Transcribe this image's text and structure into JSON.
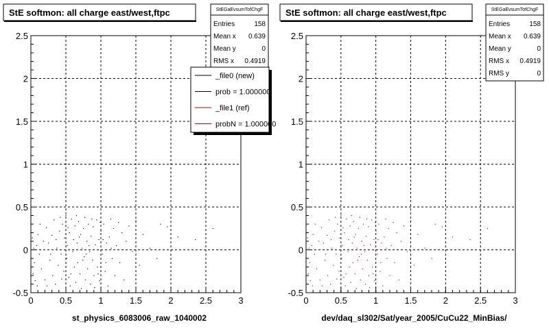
{
  "colors": {
    "ref_series": "#cc0000",
    "new_series": "#000000",
    "legend_red": "#cc0000"
  },
  "bottom_left_text": "",
  "chart_data": [
    {
      "type": "scatter",
      "title": "StE softmon: all charge east/west,ftpc",
      "xlabel": "st_physics_6083006_raw_1040002",
      "ylabel": "",
      "xlim": [
        0,
        3
      ],
      "ylim": [
        -0.5,
        2.5
      ],
      "grid": true,
      "x_ticks": [
        "0",
        "0.5",
        "1",
        "1.5",
        "2",
        "2.5",
        "3"
      ],
      "y_ticks": [
        "-0.5",
        "0",
        "0.5",
        "1",
        "1.5",
        "2",
        "2.5"
      ],
      "stats": {
        "name": "StEGaEvsumTofChgF",
        "rows": [
          {
            "label": "Entries",
            "value": "158"
          },
          {
            "label": "Mean x",
            "value": "0.639"
          },
          {
            "label": "Mean y",
            "value": "0"
          },
          {
            "label": "RMS x",
            "value": "0.4919"
          }
        ]
      },
      "legend": {
        "placement": "top-right",
        "entries": [
          {
            "label": "_file0 (new)",
            "color": "#000000"
          },
          {
            "label": "prob = 1.000000",
            "color": "#000000"
          },
          {
            "label": "_file1 (ref)",
            "color": "#cc0000"
          },
          {
            "label": "probN = 1.000000",
            "color": "#cc0000"
          }
        ]
      },
      "point_color": "#000000",
      "points": [
        [
          0.02,
          0.14
        ],
        [
          0.04,
          0.02
        ],
        [
          0.05,
          -0.15
        ],
        [
          0.03,
          -0.28
        ],
        [
          0.06,
          -0.36
        ],
        [
          0.08,
          0.05
        ],
        [
          0.09,
          -0.42
        ],
        [
          0.1,
          0.18
        ],
        [
          0.12,
          -0.05
        ],
        [
          0.15,
          -0.22
        ],
        [
          0.18,
          0.1
        ],
        [
          0.2,
          -0.35
        ],
        [
          0.22,
          0.26
        ],
        [
          0.25,
          0.08
        ],
        [
          0.27,
          -0.12
        ],
        [
          0.3,
          0.17
        ],
        [
          0.31,
          -0.3
        ],
        [
          0.33,
          0.35
        ],
        [
          0.35,
          -0.4
        ],
        [
          0.37,
          0.02
        ],
        [
          0.39,
          -0.18
        ],
        [
          0.41,
          0.22
        ],
        [
          0.43,
          -0.05
        ],
        [
          0.45,
          0.3
        ],
        [
          0.47,
          -0.25
        ],
        [
          0.48,
          0.14
        ],
        [
          0.5,
          0.4
        ],
        [
          0.51,
          -0.1
        ],
        [
          0.52,
          0.05
        ],
        [
          0.54,
          -0.32
        ],
        [
          0.55,
          0.2
        ],
        [
          0.56,
          -0.42
        ],
        [
          0.58,
          0.36
        ],
        [
          0.6,
          -0.02
        ],
        [
          0.61,
          0.12
        ],
        [
          0.62,
          -0.2
        ],
        [
          0.63,
          0.28
        ],
        [
          0.64,
          -0.38
        ],
        [
          0.66,
          0.08
        ],
        [
          0.67,
          -0.15
        ],
        [
          0.68,
          0.33
        ],
        [
          0.7,
          -0.28
        ],
        [
          0.71,
          0.18
        ],
        [
          0.72,
          -0.45
        ],
        [
          0.73,
          0.02
        ],
        [
          0.75,
          0.25
        ],
        [
          0.76,
          -0.08
        ],
        [
          0.77,
          0.38
        ],
        [
          0.78,
          -0.35
        ],
        [
          0.8,
          0.1
        ],
        [
          0.81,
          -0.22
        ],
        [
          0.82,
          0.3
        ],
        [
          0.84,
          -0.02
        ],
        [
          0.85,
          -0.4
        ],
        [
          0.86,
          0.16
        ],
        [
          0.88,
          -0.12
        ],
        [
          0.89,
          0.27
        ],
        [
          0.9,
          -0.3
        ],
        [
          0.92,
          0.06
        ],
        [
          0.94,
          0.35
        ],
        [
          0.95,
          -0.2
        ],
        [
          0.97,
          0.12
        ],
        [
          0.98,
          -0.36
        ],
        [
          1.0,
          0.22
        ],
        [
          1.02,
          -0.05
        ],
        [
          1.04,
          0.3
        ],
        [
          1.06,
          -0.25
        ],
        [
          1.08,
          0.08
        ],
        [
          1.1,
          -0.42
        ],
        [
          1.12,
          0.15
        ],
        [
          1.14,
          0.36
        ],
        [
          1.16,
          -0.1
        ],
        [
          1.18,
          0.25
        ],
        [
          1.2,
          -0.3
        ],
        [
          1.22,
          0.05
        ],
        [
          1.25,
          0.32
        ],
        [
          1.27,
          -0.15
        ],
        [
          1.3,
          0.2
        ],
        [
          1.33,
          -0.35
        ],
        [
          1.36,
          0.1
        ],
        [
          1.4,
          0.28
        ],
        [
          1.45,
          -0.02
        ],
        [
          1.5,
          0.34
        ],
        [
          1.55,
          -0.18
        ],
        [
          1.6,
          0.18
        ],
        [
          1.7,
          0.02
        ],
        [
          1.8,
          -0.1
        ],
        [
          1.85,
          0.3
        ],
        [
          1.95,
          0.27
        ],
        [
          2.1,
          0.15
        ],
        [
          2.35,
          0.12
        ],
        [
          2.6,
          0.25
        ],
        [
          0.13,
          0.3
        ],
        [
          0.23,
          -0.42
        ],
        [
          0.36,
          0.12
        ],
        [
          0.44,
          -0.34
        ],
        [
          0.53,
          0.26
        ],
        [
          0.65,
          0.4
        ],
        [
          0.74,
          -0.12
        ],
        [
          0.83,
          0.05
        ],
        [
          0.91,
          -0.44
        ],
        [
          0.99,
          0.32
        ],
        [
          1.07,
          -0.15
        ],
        [
          1.15,
          0.02
        ],
        [
          0.28,
          -0.05
        ],
        [
          0.42,
          0.38
        ],
        [
          0.57,
          -0.28
        ],
        [
          0.69,
          0.15
        ],
        [
          0.79,
          -0.05
        ],
        [
          0.87,
          0.36
        ],
        [
          0.96,
          -0.28
        ],
        [
          1.03,
          0.12
        ]
      ]
    },
    {
      "type": "scatter",
      "title": "StE softmon: all charge east/west,ftpc",
      "xlabel": "dev/daq_sl302/Sat/year_2005/CuCu22_MinBias/",
      "ylabel": "",
      "xlim": [
        0,
        3
      ],
      "ylim": [
        -0.5,
        2.5
      ],
      "grid": true,
      "x_ticks": [
        "0",
        "0.5",
        "1",
        "1.5",
        "2",
        "2.5",
        "3"
      ],
      "y_ticks": [
        "-0.5",
        "0",
        "0.5",
        "1",
        "1.5",
        "2",
        "2.5"
      ],
      "stats": {
        "name": "StEGaEvsumTofChgF",
        "rows": [
          {
            "label": "Entries",
            "value": "158"
          },
          {
            "label": "Mean x",
            "value": "0.639"
          },
          {
            "label": "Mean y",
            "value": "0"
          },
          {
            "label": "RMS x",
            "value": "0.4919"
          },
          {
            "label": "RMS y",
            "value": "0"
          }
        ]
      },
      "point_color": "#cc0000",
      "points": [
        [
          0.02,
          0.14
        ],
        [
          0.04,
          0.02
        ],
        [
          0.05,
          -0.15
        ],
        [
          0.03,
          -0.28
        ],
        [
          0.06,
          -0.36
        ],
        [
          0.08,
          0.05
        ],
        [
          0.09,
          -0.42
        ],
        [
          0.1,
          0.18
        ],
        [
          0.12,
          -0.05
        ],
        [
          0.15,
          -0.22
        ],
        [
          0.18,
          0.1
        ],
        [
          0.2,
          -0.35
        ],
        [
          0.22,
          0.26
        ],
        [
          0.25,
          0.08
        ],
        [
          0.27,
          -0.12
        ],
        [
          0.3,
          0.17
        ],
        [
          0.31,
          -0.3
        ],
        [
          0.33,
          0.35
        ],
        [
          0.35,
          -0.4
        ],
        [
          0.37,
          0.02
        ],
        [
          0.39,
          -0.18
        ],
        [
          0.41,
          0.22
        ],
        [
          0.43,
          -0.05
        ],
        [
          0.45,
          0.3
        ],
        [
          0.47,
          -0.25
        ],
        [
          0.48,
          0.14
        ],
        [
          0.5,
          0.4
        ],
        [
          0.51,
          -0.1
        ],
        [
          0.52,
          0.05
        ],
        [
          0.54,
          -0.32
        ],
        [
          0.55,
          0.2
        ],
        [
          0.56,
          -0.42
        ],
        [
          0.58,
          0.36
        ],
        [
          0.6,
          -0.02
        ],
        [
          0.61,
          0.12
        ],
        [
          0.62,
          -0.2
        ],
        [
          0.63,
          0.28
        ],
        [
          0.64,
          -0.38
        ],
        [
          0.66,
          0.08
        ],
        [
          0.67,
          -0.15
        ],
        [
          0.68,
          0.33
        ],
        [
          0.7,
          -0.28
        ],
        [
          0.71,
          0.18
        ],
        [
          0.72,
          -0.45
        ],
        [
          0.73,
          0.02
        ],
        [
          0.75,
          0.25
        ],
        [
          0.76,
          -0.08
        ],
        [
          0.77,
          0.38
        ],
        [
          0.78,
          -0.35
        ],
        [
          0.8,
          0.1
        ],
        [
          0.81,
          -0.22
        ],
        [
          0.82,
          0.3
        ],
        [
          0.84,
          -0.02
        ],
        [
          0.85,
          -0.4
        ],
        [
          0.86,
          0.16
        ],
        [
          0.88,
          -0.12
        ],
        [
          0.89,
          0.27
        ],
        [
          0.9,
          -0.3
        ],
        [
          0.92,
          0.06
        ],
        [
          0.94,
          0.35
        ],
        [
          0.95,
          -0.2
        ],
        [
          0.97,
          0.12
        ],
        [
          0.98,
          -0.36
        ],
        [
          1.0,
          0.22
        ],
        [
          1.02,
          -0.05
        ],
        [
          1.04,
          0.3
        ],
        [
          1.06,
          -0.25
        ],
        [
          1.08,
          0.08
        ],
        [
          1.1,
          -0.42
        ],
        [
          1.12,
          0.15
        ],
        [
          1.14,
          0.36
        ],
        [
          1.16,
          -0.1
        ],
        [
          1.18,
          0.25
        ],
        [
          1.2,
          -0.3
        ],
        [
          1.22,
          0.05
        ],
        [
          1.25,
          0.32
        ],
        [
          1.27,
          -0.15
        ],
        [
          1.3,
          0.2
        ],
        [
          1.33,
          -0.35
        ],
        [
          1.36,
          0.1
        ],
        [
          1.4,
          0.28
        ],
        [
          1.45,
          -0.02
        ],
        [
          1.5,
          0.34
        ],
        [
          1.55,
          -0.18
        ],
        [
          1.6,
          0.18
        ],
        [
          1.7,
          0.02
        ],
        [
          1.8,
          -0.1
        ],
        [
          1.85,
          0.3
        ],
        [
          1.95,
          0.27
        ],
        [
          2.1,
          0.15
        ],
        [
          2.35,
          0.12
        ],
        [
          2.6,
          0.25
        ],
        [
          0.13,
          0.3
        ],
        [
          0.23,
          -0.42
        ],
        [
          0.36,
          0.12
        ],
        [
          0.44,
          -0.34
        ],
        [
          0.53,
          0.26
        ],
        [
          0.65,
          0.4
        ],
        [
          0.74,
          -0.12
        ],
        [
          0.83,
          0.05
        ],
        [
          0.91,
          -0.44
        ],
        [
          0.99,
          0.32
        ],
        [
          1.07,
          -0.15
        ],
        [
          1.15,
          0.02
        ],
        [
          0.28,
          -0.05
        ],
        [
          0.42,
          0.38
        ],
        [
          0.57,
          -0.28
        ],
        [
          0.69,
          0.15
        ],
        [
          0.79,
          -0.05
        ],
        [
          0.87,
          0.36
        ],
        [
          0.96,
          -0.28
        ],
        [
          1.03,
          0.12
        ]
      ]
    }
  ]
}
